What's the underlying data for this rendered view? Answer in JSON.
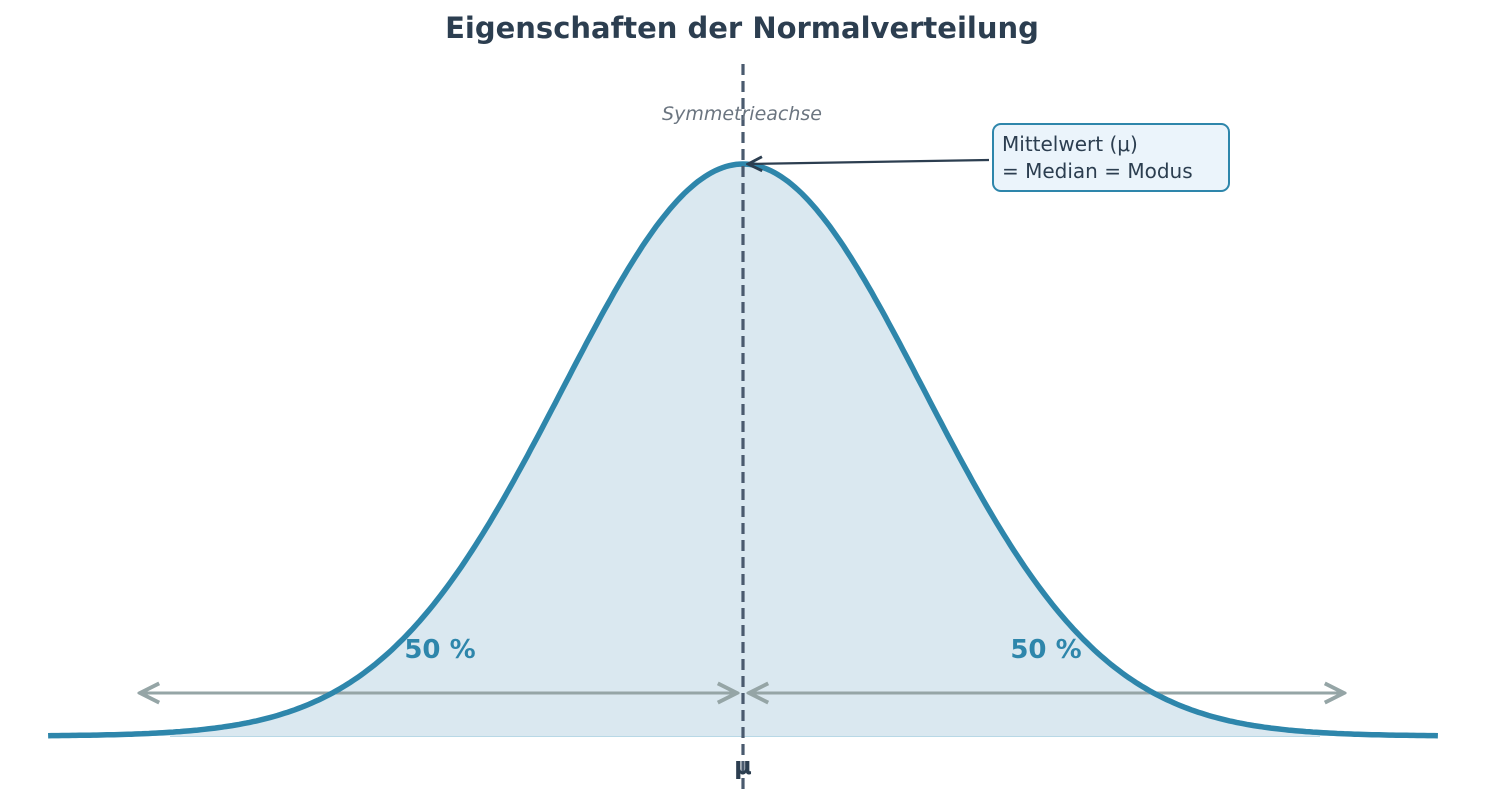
{
  "chart_data": {
    "type": "line",
    "title": "Eigenschaften der Normalverteilung",
    "distribution": "normal",
    "mu": 0,
    "sigma": 1,
    "x_range": [
      -3.85,
      3.85
    ],
    "xlabel": "",
    "ylabel": "",
    "x_tick_labels": [
      "μ"
    ],
    "grid": false,
    "annotations": {
      "axis_label": "Symmetrieachse",
      "callout_line1": "Mittelwert (μ)",
      "callout_line2": "= Median = Modus",
      "left_share": "50 %",
      "right_share": "50 %"
    },
    "colors": {
      "curve": "#2e86ab",
      "fill": "#dae8f0",
      "axis": "#4a5a6e",
      "arrows": "#95a5a6",
      "title": "#2c3e50",
      "callout_bg": "#ebf4fb"
    }
  }
}
